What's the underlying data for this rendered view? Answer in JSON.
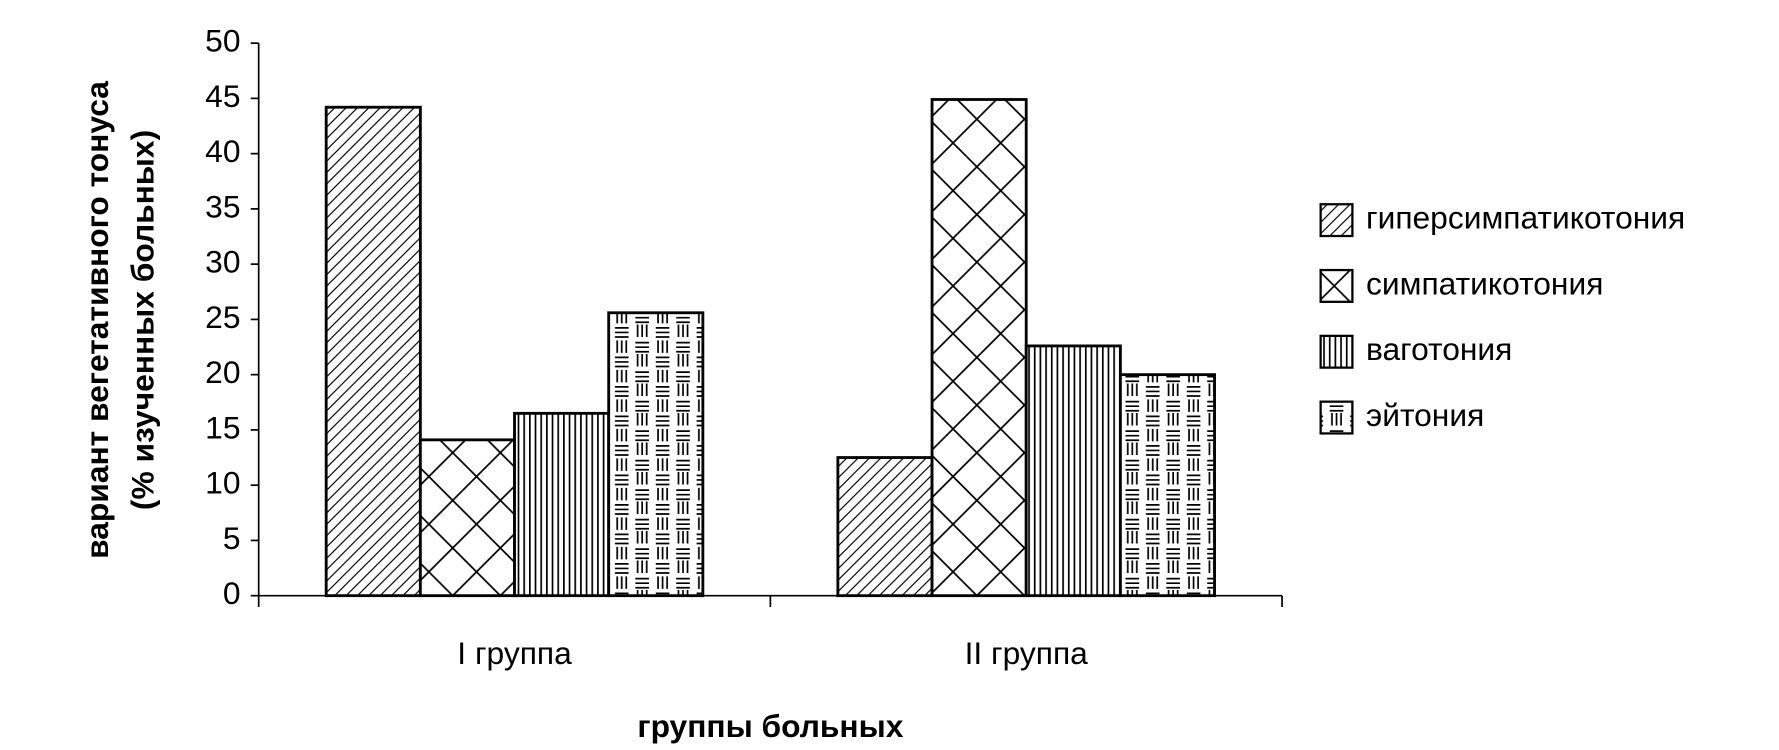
{
  "chart_data": {
    "type": "bar",
    "y_label": [
      "вариант вегетативного тонуса",
      "(% изученных больных)"
    ],
    "x_label": "группы больных",
    "categories": [
      "I группа",
      "II группа"
    ],
    "series": [
      {
        "name": "гиперсимпатикотония",
        "color": "#000000",
        "pattern": "diagonal",
        "values": [
          44.2,
          12.5
        ]
      },
      {
        "name": "симпатикотония",
        "color": "#000000",
        "pattern": "cross",
        "values": [
          14.1,
          44.9
        ]
      },
      {
        "name": "ваготония",
        "color": "#000000",
        "pattern": "vertical",
        "values": [
          16.5,
          22.6
        ]
      },
      {
        "name": "эйтония",
        "color": "#000000",
        "pattern": "mixed",
        "values": [
          25.6,
          20.0
        ]
      }
    ],
    "ylim": [
      0,
      50
    ],
    "yticks": [
      0,
      5,
      10,
      15,
      20,
      25,
      30,
      35,
      40,
      45,
      50
    ],
    "grid": false,
    "legend": "right"
  }
}
